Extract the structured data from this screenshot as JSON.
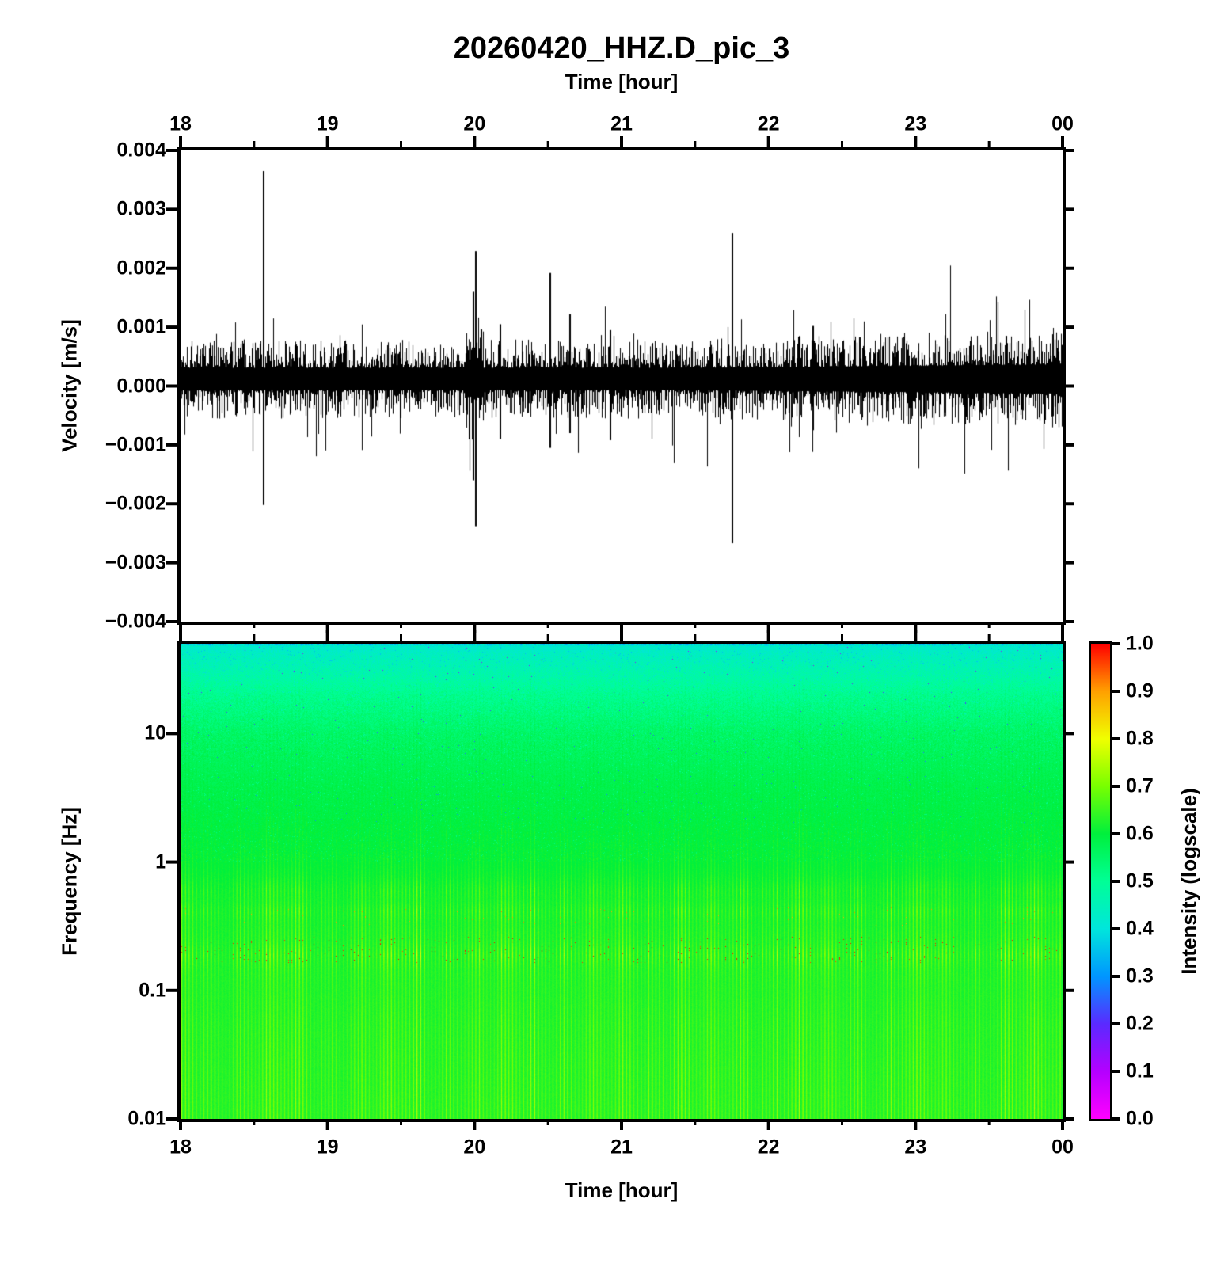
{
  "figure": {
    "title": "20260420_HHZ.D_pic_3",
    "top_axis_title": "Time [hour]",
    "bottom_axis_title": "Time [hour]",
    "waveform_axis_title": "Velocity [m/s]",
    "spectrogram_axis_title": "Frequency [Hz]",
    "colorbar_title": "Intensity (logscale)"
  },
  "chart_data": [
    {
      "type": "line",
      "title": "20260420_HHZ.D_pic_3",
      "xlabel": "Time [hour]",
      "ylabel": "Velocity [m/s]",
      "xlim": [
        18,
        24
      ],
      "ylim": [
        -0.004,
        0.004
      ],
      "x_ticks": {
        "labels": [
          "18",
          "19",
          "20",
          "21",
          "22",
          "23",
          "00"
        ],
        "values": [
          18,
          19,
          20,
          21,
          22,
          23,
          24
        ],
        "minor_step": 0.5
      },
      "y_ticks": {
        "labels": [
          "0.004",
          "0.003",
          "0.002",
          "0.001",
          "0.000",
          "−0.001",
          "−0.002",
          "−0.003",
          "−0.004"
        ],
        "values": [
          0.004,
          0.003,
          0.002,
          0.001,
          0.0,
          -0.001,
          -0.002,
          -0.003,
          -0.004
        ]
      },
      "line_color": "#000000",
      "noise": {
        "seed": 1337,
        "mean_offset": 0.00012,
        "base_amplitude": 0.00042,
        "late_amplitude": 0.00055,
        "late_start_hour": 21.5,
        "spike_probability": 0.06,
        "burst_hour": 20.0,
        "burst_halfwidth": 0.06,
        "burst_gain": 1.6
      },
      "spikes": [
        {
          "hour": 18.56,
          "max": 0.00365,
          "min": -0.00202
        },
        {
          "hour": 19.985,
          "max": 0.0016,
          "min": -0.0016
        },
        {
          "hour": 20.005,
          "max": 0.00229,
          "min": -0.00238
        },
        {
          "hour": 20.17,
          "max": 0.00105,
          "min": -0.0009
        },
        {
          "hour": 20.51,
          "max": 0.00192,
          "min": -0.00105
        },
        {
          "hour": 20.645,
          "max": 0.00122,
          "min": -0.0008
        },
        {
          "hour": 20.92,
          "max": 0.00095,
          "min": -0.00092
        },
        {
          "hour": 21.75,
          "max": 0.0026,
          "min": -0.00267
        },
        {
          "hour": 22.3,
          "max": 0.00102,
          "min": -0.00075
        }
      ]
    },
    {
      "type": "heatmap",
      "xlabel": "Time [hour]",
      "ylabel": "Frequency [Hz]",
      "xlim": [
        18,
        24
      ],
      "freq_range_hz": [
        0.01,
        50
      ],
      "x_ticks": {
        "labels": [
          "18",
          "19",
          "20",
          "21",
          "22",
          "23",
          "00"
        ],
        "values": [
          18,
          19,
          20,
          21,
          22,
          23,
          24
        ],
        "minor_step": 0.5
      },
      "freq_ticks": {
        "labels": [
          "10",
          "1",
          "0.1",
          "0.01"
        ],
        "values": [
          10,
          1,
          0.1,
          0.01
        ]
      },
      "stripe_period_hours": 0.025,
      "stripe_group_period_hours": 0.2,
      "base_intensity_vs_log10freq": [
        [
          1.7,
          0.415
        ],
        [
          1.6,
          0.44
        ],
        [
          1.45,
          0.47
        ],
        [
          1.3,
          0.505
        ],
        [
          1.0,
          0.55
        ],
        [
          0.6,
          0.578
        ],
        [
          0.3,
          0.59
        ],
        [
          0.0,
          0.6
        ],
        [
          -0.3,
          0.612
        ],
        [
          -0.7,
          0.618
        ],
        [
          -1.0,
          0.622
        ],
        [
          -1.4,
          0.625
        ],
        [
          -2.0,
          0.628
        ]
      ],
      "stripe_strength_vs_log10freq": [
        [
          1.7,
          0.015
        ],
        [
          1.0,
          0.018
        ],
        [
          0.5,
          0.022
        ],
        [
          0.1,
          0.03
        ],
        [
          -0.1,
          0.05
        ],
        [
          -0.22,
          0.095
        ],
        [
          -0.3,
          0.075
        ],
        [
          -0.38,
          0.118
        ],
        [
          -0.48,
          0.08
        ],
        [
          -0.62,
          0.1
        ],
        [
          -0.72,
          0.15
        ],
        [
          -0.85,
          0.09
        ],
        [
          -1.0,
          0.07
        ],
        [
          -1.2,
          0.085
        ],
        [
          -1.6,
          0.095
        ],
        [
          -2.0,
          0.1
        ]
      ],
      "hot_bands": [
        {
          "freq_hz": 0.2,
          "log10_range": [
            -0.78,
            -0.58
          ],
          "dot_probability": 0.05,
          "dot_intensity": 0.95
        },
        {
          "freq_hz": 0.4,
          "log10_range": [
            -0.5,
            -0.35
          ],
          "dot_probability": 0.02,
          "dot_intensity": 0.88
        }
      ],
      "top_edge_speckle_intensity": [
        0.3,
        0.46
      ],
      "colorbar": {
        "label": "Intensity (logscale)",
        "ticks": [
          "1.0",
          "0.9",
          "0.8",
          "0.7",
          "0.6",
          "0.5",
          "0.4",
          "0.3",
          "0.2",
          "0.1",
          "0.0"
        ],
        "tick_values": [
          1.0,
          0.9,
          0.8,
          0.7,
          0.6,
          0.5,
          0.4,
          0.3,
          0.2,
          0.1,
          0.0
        ],
        "palette": [
          {
            "value": 0.0,
            "color": "#ff00ff"
          },
          {
            "value": 0.1,
            "color": "#b400ff"
          },
          {
            "value": 0.2,
            "color": "#5a2aff"
          },
          {
            "value": 0.3,
            "color": "#0096ff"
          },
          {
            "value": 0.4,
            "color": "#00e6dc"
          },
          {
            "value": 0.5,
            "color": "#00ff96"
          },
          {
            "value": 0.6,
            "color": "#00f03c"
          },
          {
            "value": 0.7,
            "color": "#78ff00"
          },
          {
            "value": 0.8,
            "color": "#f0ff00"
          },
          {
            "value": 0.9,
            "color": "#ffa000"
          },
          {
            "value": 1.0,
            "color": "#ff0000"
          }
        ]
      }
    }
  ]
}
